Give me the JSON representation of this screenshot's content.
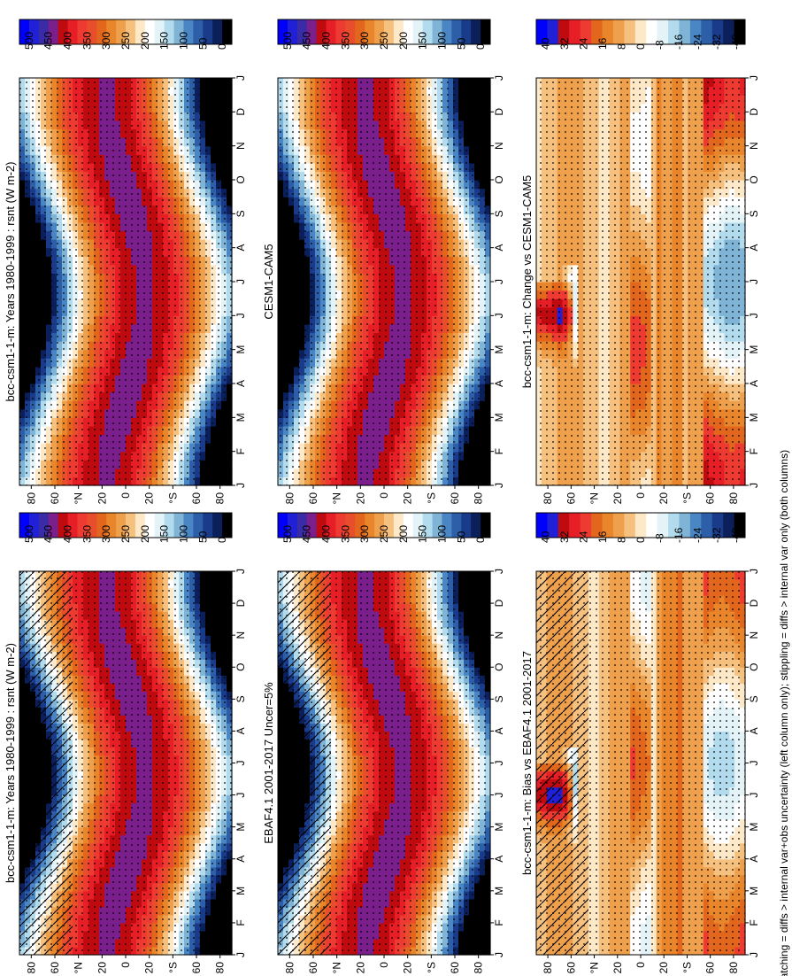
{
  "footnote": "hatching = diffs > internal var+obs uncertainty (left column only); stippling = diffs > internal var only (both columns)",
  "months": [
    "J",
    "F",
    "M",
    "A",
    "M",
    "J",
    "J",
    "A",
    "S",
    "O",
    "N",
    "D",
    "J"
  ],
  "lat_ticks": [
    "80",
    "60",
    "°N",
    "20",
    "0",
    "20",
    "°S",
    "60",
    "80"
  ],
  "lat_values": [
    80,
    60,
    40,
    20,
    0,
    -20,
    -40,
    -60,
    -80
  ],
  "colors": {
    "abs_scale": [
      "#000000",
      "#0b1f5a",
      "#1a3b8a",
      "#2d5ea8",
      "#4a86c3",
      "#7fb4d6",
      "#b2dced",
      "#e3f3f8",
      "#ffffff",
      "#fde8c8",
      "#f6c07f",
      "#eea04c",
      "#e9852a",
      "#e2661c",
      "#e84e2c",
      "#ee3b32",
      "#e61f27",
      "#bf0a0f",
      "#7a1f8c",
      "#3a2ca6",
      "#2020d6",
      "#0000ff"
    ],
    "diff_scale": [
      "#000000",
      "#0b1f5a",
      "#1a3b8a",
      "#2d5ea8",
      "#4a86c3",
      "#7fb4d6",
      "#b2dced",
      "#e3f3f8",
      "#ffffff",
      "#fde8c8",
      "#f6c07f",
      "#eea04c",
      "#e9852a",
      "#e2661c",
      "#ee3b32",
      "#e61f27",
      "#bf0a0f",
      "#2020d6",
      "#0000ff"
    ]
  },
  "chart_data": [
    {
      "type": "heatmap",
      "panel": "top-left",
      "title": "bcc-csm1-1-m: Years 1980-1999 : rsnt (W m-2)",
      "variable": "rsnt",
      "units": "W m-2",
      "x": [
        "J",
        "F",
        "M",
        "A",
        "M",
        "J",
        "J",
        "A",
        "S",
        "O",
        "N",
        "D",
        "J"
      ],
      "y_ticks": [
        "80",
        "60",
        "°N",
        "20",
        "0",
        "20",
        "°S",
        "60",
        "80"
      ],
      "colorbar": [
        "500",
        "450",
        "400",
        "350",
        "300",
        "250",
        "200",
        "150",
        "100",
        "50",
        "0"
      ],
      "zlim": [
        0,
        520
      ],
      "hatching": true,
      "stippling": true
    },
    {
      "type": "heatmap",
      "panel": "top-right",
      "title": "bcc-csm1-1-m: Years 1980-1999 : rsnt (W m-2)",
      "x": [
        "J",
        "F",
        "M",
        "A",
        "M",
        "J",
        "J",
        "A",
        "S",
        "O",
        "N",
        "D",
        "J"
      ],
      "y_ticks": [
        "80",
        "60",
        "°N",
        "20",
        "0",
        "20",
        "°S",
        "60",
        "80"
      ],
      "colorbar": [
        "500",
        "450",
        "400",
        "350",
        "300",
        "250",
        "200",
        "150",
        "100",
        "50",
        "0"
      ],
      "zlim": [
        0,
        520
      ],
      "stippling": true
    },
    {
      "type": "heatmap",
      "panel": "middle-left",
      "title": "EBAF4.1 2001-2017 Uncer=5%",
      "x": [
        "J",
        "F",
        "M",
        "A",
        "M",
        "J",
        "J",
        "A",
        "S",
        "O",
        "N",
        "D",
        "J"
      ],
      "y_ticks": [
        "80",
        "60",
        "°N",
        "20",
        "0",
        "20",
        "°S",
        "60",
        "80"
      ],
      "colorbar": [
        "500",
        "450",
        "400",
        "350",
        "300",
        "250",
        "200",
        "150",
        "100",
        "50",
        "0"
      ],
      "zlim": [
        0,
        520
      ],
      "hatching": true,
      "stippling": true
    },
    {
      "type": "heatmap",
      "panel": "middle-right",
      "title": "CESM1-CAM5",
      "x": [
        "J",
        "F",
        "M",
        "A",
        "M",
        "J",
        "J",
        "A",
        "S",
        "O",
        "N",
        "D",
        "J"
      ],
      "y_ticks": [
        "80",
        "60",
        "°N",
        "20",
        "0",
        "20",
        "°S",
        "60",
        "80"
      ],
      "colorbar": [
        "500",
        "450",
        "400",
        "350",
        "300",
        "250",
        "200",
        "150",
        "100",
        "50",
        "0"
      ],
      "zlim": [
        0,
        520
      ],
      "stippling": true
    },
    {
      "type": "heatmap",
      "panel": "bottom-left",
      "title": "bcc-csm1-1-m: Bias vs EBAF4.1 2001-2017",
      "x": [
        "J",
        "F",
        "M",
        "A",
        "M",
        "J",
        "J",
        "A",
        "S",
        "O",
        "N",
        "D",
        "J"
      ],
      "y_ticks": [
        "80",
        "60",
        "°N",
        "20",
        "0",
        "20",
        "°S",
        "60",
        "80"
      ],
      "colorbar": [
        "40",
        "32",
        "24",
        "16",
        "8",
        "0",
        "-8",
        "-16",
        "-24",
        "-32",
        "-40"
      ],
      "zlim": [
        -44,
        44
      ],
      "hatching": true,
      "stippling": true
    },
    {
      "type": "heatmap",
      "panel": "bottom-right",
      "title": "bcc-csm1-1-m: Change vs CESM1-CAM5",
      "x": [
        "J",
        "F",
        "M",
        "A",
        "M",
        "J",
        "J",
        "A",
        "S",
        "O",
        "N",
        "D",
        "J"
      ],
      "y_ticks": [
        "80",
        "60",
        "°N",
        "20",
        "0",
        "20",
        "°S",
        "60",
        "80"
      ],
      "colorbar": [
        "40",
        "32",
        "24",
        "16",
        "8",
        "0",
        "-8",
        "-16",
        "-24",
        "-32",
        "-40"
      ],
      "zlim": [
        -44,
        44
      ],
      "stippling": true
    }
  ]
}
